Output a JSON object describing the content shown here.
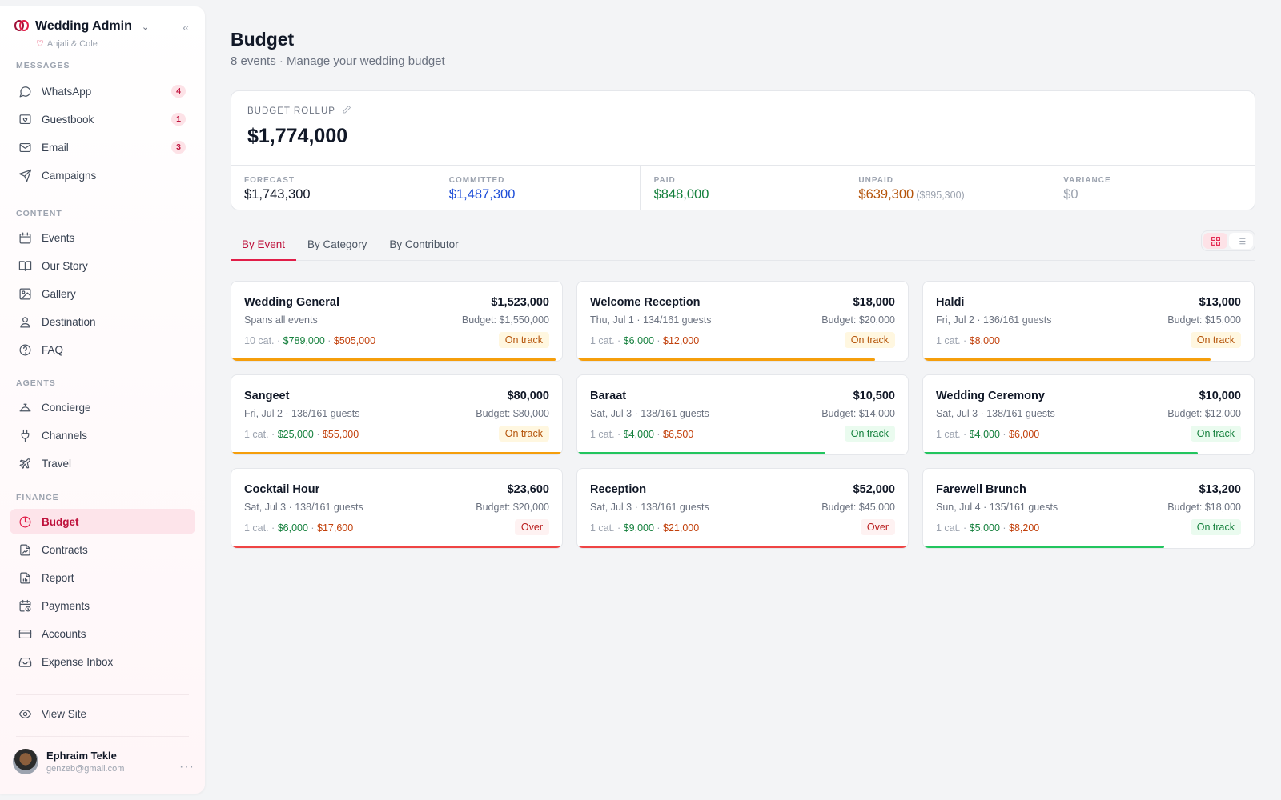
{
  "app": {
    "title": "Wedding Admin",
    "couple": "Anjali & Cole"
  },
  "sidebar": {
    "sections": [
      {
        "label": "MESSAGES"
      },
      {
        "label": "CONTENT"
      },
      {
        "label": "AGENTS"
      },
      {
        "label": "FINANCE"
      }
    ],
    "items": [
      {
        "label": "WhatsApp",
        "badge": "4",
        "icon": "message-circle-icon"
      },
      {
        "label": "Guestbook",
        "badge": "1",
        "icon": "guestbook-icon"
      },
      {
        "label": "Email",
        "badge": "3",
        "icon": "mail-icon"
      },
      {
        "label": "Campaigns",
        "icon": "send-icon"
      },
      {
        "label": "Events",
        "icon": "calendar-icon"
      },
      {
        "label": "Our Story",
        "icon": "book-icon"
      },
      {
        "label": "Gallery",
        "icon": "image-icon"
      },
      {
        "label": "Destination",
        "icon": "map-pin-icon"
      },
      {
        "label": "FAQ",
        "icon": "help-circle-icon"
      },
      {
        "label": "Concierge",
        "icon": "concierge-bell-icon"
      },
      {
        "label": "Channels",
        "icon": "plug-icon"
      },
      {
        "label": "Travel",
        "icon": "plane-icon"
      },
      {
        "label": "Budget",
        "icon": "pie-chart-icon",
        "active": true
      },
      {
        "label": "Contracts",
        "icon": "file-signature-icon"
      },
      {
        "label": "Report",
        "icon": "report-icon"
      },
      {
        "label": "Payments",
        "icon": "calendar-clock-icon"
      },
      {
        "label": "Accounts",
        "icon": "credit-card-icon"
      },
      {
        "label": "Expense Inbox",
        "icon": "inbox-icon"
      },
      {
        "label": "View Site",
        "icon": "eye-icon"
      }
    ]
  },
  "user": {
    "name": "Ephraim Tekle",
    "email": "genzeb@gmail.com"
  },
  "page": {
    "title": "Budget",
    "subtitle": "8 events · Manage your wedding budget"
  },
  "rollup": {
    "label": "BUDGET ROLLUP",
    "total": "$1,774,000",
    "metrics": [
      {
        "label": "FORECAST",
        "value": "$1,743,300",
        "color": "#111827"
      },
      {
        "label": "COMMITTED",
        "value": "$1,487,300",
        "color": "#1d4ed8"
      },
      {
        "label": "PAID",
        "value": "$848,000",
        "color": "#15803d"
      },
      {
        "label": "UNPAID",
        "value": "$639,300",
        "sub": "($895,300)",
        "color": "#b45309"
      },
      {
        "label": "VARIANCE",
        "value": "$0",
        "color": "#9ca3af"
      }
    ]
  },
  "tabs": [
    "By Event",
    "By Category",
    "By Contributor"
  ],
  "events": [
    {
      "name": "Wedding General",
      "amount": "$1,523,000",
      "meta": "Spans all events",
      "budget": "Budget: $1,550,000",
      "cat": "10 cat.",
      "paid": "$789,000",
      "unpaid": "$505,000",
      "status": "On track",
      "status_tone": "amber",
      "progress": 0.98,
      "bar_color": "#f59e0b"
    },
    {
      "name": "Welcome Reception",
      "amount": "$18,000",
      "meta": "Thu, Jul 1 · 134/161 guests",
      "budget": "Budget: $20,000",
      "cat": "1 cat.",
      "paid": "$6,000",
      "unpaid": "$12,000",
      "status": "On track",
      "status_tone": "amber",
      "progress": 0.9,
      "bar_color": "#f59e0b"
    },
    {
      "name": "Haldi",
      "amount": "$13,000",
      "meta": "Fri, Jul 2 · 136/161 guests",
      "budget": "Budget: $15,000",
      "cat": "1 cat.",
      "paid": "",
      "unpaid": "$8,000",
      "status": "On track",
      "status_tone": "amber",
      "progress": 0.87,
      "bar_color": "#f59e0b"
    },
    {
      "name": "Sangeet",
      "amount": "$80,000",
      "meta": "Fri, Jul 2 · 136/161 guests",
      "budget": "Budget: $80,000",
      "cat": "1 cat.",
      "paid": "$25,000",
      "unpaid": "$55,000",
      "status": "On track",
      "status_tone": "amber",
      "progress": 1.0,
      "bar_color": "#f59e0b"
    },
    {
      "name": "Baraat",
      "amount": "$10,500",
      "meta": "Sat, Jul 3 · 138/161 guests",
      "budget": "Budget: $14,000",
      "cat": "1 cat.",
      "paid": "$4,000",
      "unpaid": "$6,500",
      "status": "On track",
      "status_tone": "green",
      "progress": 0.75,
      "bar_color": "#22c55e"
    },
    {
      "name": "Wedding Ceremony",
      "amount": "$10,000",
      "meta": "Sat, Jul 3 · 138/161 guests",
      "budget": "Budget: $12,000",
      "cat": "1 cat.",
      "paid": "$4,000",
      "unpaid": "$6,000",
      "status": "On track",
      "status_tone": "green",
      "progress": 0.83,
      "bar_color": "#22c55e"
    },
    {
      "name": "Cocktail Hour",
      "amount": "$23,600",
      "meta": "Sat, Jul 3 · 138/161 guests",
      "budget": "Budget: $20,000",
      "cat": "1 cat.",
      "paid": "$6,000",
      "unpaid": "$17,600",
      "status": "Over",
      "status_tone": "over",
      "progress": 1.0,
      "bar_color": "#ef4444"
    },
    {
      "name": "Reception",
      "amount": "$52,000",
      "meta": "Sat, Jul 3 · 138/161 guests",
      "budget": "Budget: $45,000",
      "cat": "1 cat.",
      "paid": "$9,000",
      "unpaid": "$21,000",
      "status": "Over",
      "status_tone": "over",
      "progress": 1.0,
      "bar_color": "#ef4444"
    },
    {
      "name": "Farewell Brunch",
      "amount": "$13,200",
      "meta": "Sun, Jul 4 · 135/161 guests",
      "budget": "Budget: $18,000",
      "cat": "1 cat.",
      "paid": "$5,000",
      "unpaid": "$8,200",
      "status": "On track",
      "status_tone": "green",
      "progress": 0.73,
      "bar_color": "#22c55e"
    }
  ]
}
